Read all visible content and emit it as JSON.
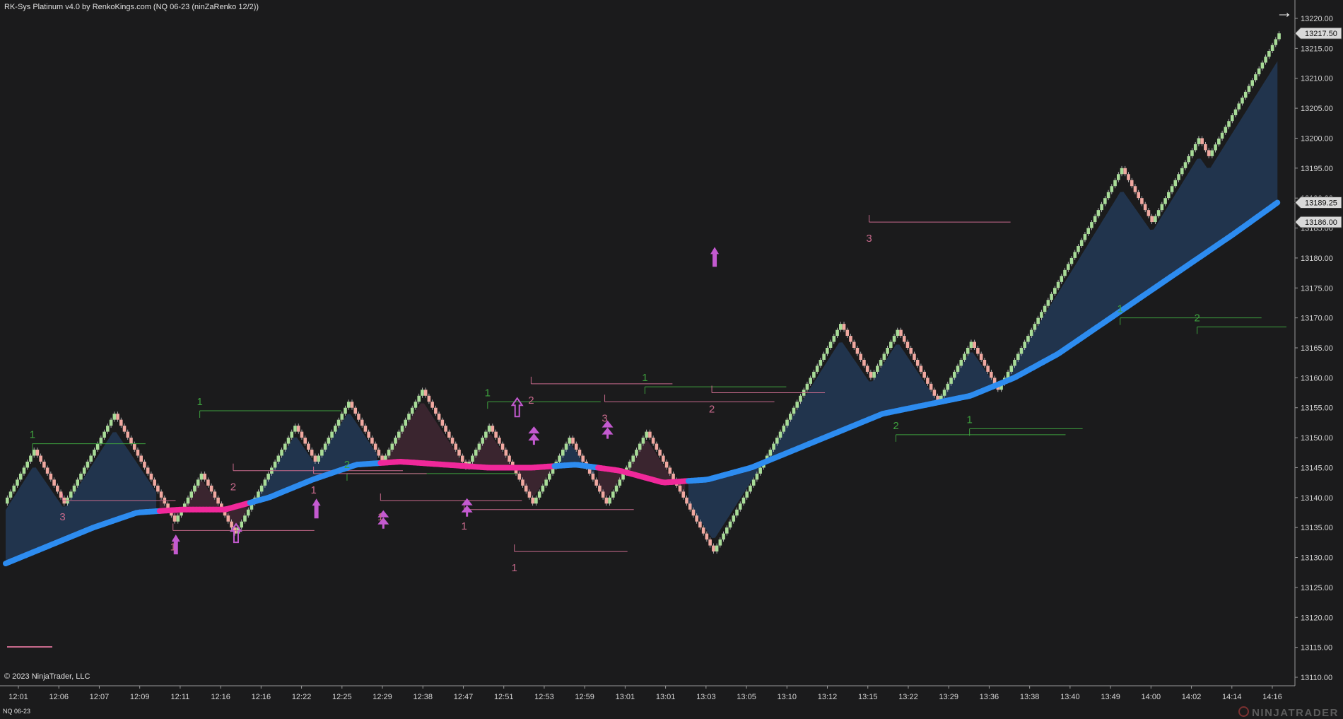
{
  "window": {
    "title": "RK-Sys Platinum v4.0 by RenkoKings.com (NQ 06-23 (ninZaRenko 12/2))",
    "copyright": "© 2023 NinjaTrader, LLC",
    "instrument_tab": "NQ 06-23",
    "brand": "NINJATRADER",
    "nav_icon": "arrow-right-icon"
  },
  "colors": {
    "background": "#1b1b1c",
    "up_brick": "#a8dc98",
    "down_brick": "#f0a8a0",
    "ma_up": "#2d8cf0",
    "ma_down": "#f0289a",
    "cloud_up": "#223650",
    "cloud_down": "#3c2630",
    "swing_high": "#3ea13e",
    "swing_low": "#c86a8c",
    "signal": "#c45ad0"
  },
  "chart_data": {
    "type": "renko",
    "title": "RK-Sys Platinum v4.0 by RenkoKings.com (NQ 06-23 (ninZaRenko 12/2))",
    "ylim": [
      13108,
      13222.5
    ],
    "y_ticks": [
      "13110.00",
      "13115.00",
      "13120.00",
      "13125.00",
      "13130.00",
      "13135.00",
      "13140.00",
      "13145.00",
      "13150.00",
      "13155.00",
      "13160.00",
      "13165.00",
      "13170.00",
      "13175.00",
      "13180.00",
      "13185.00",
      "13190.00",
      "13195.00",
      "13200.00",
      "13205.00",
      "13210.00",
      "13215.00",
      "13220.00"
    ],
    "x_ticks": [
      "12:01",
      "12:06",
      "12:07",
      "12:09",
      "12:11",
      "12:16",
      "12:16",
      "12:22",
      "12:25",
      "12:29",
      "12:38",
      "12:47",
      "12:51",
      "12:53",
      "12:59",
      "13:01",
      "13:01",
      "13:03",
      "13:05",
      "13:10",
      "13:12",
      "13:15",
      "13:22",
      "13:29",
      "13:36",
      "13:38",
      "13:40",
      "13:49",
      "14:00",
      "14:02",
      "14:14",
      "14:16"
    ],
    "price_tags": [
      {
        "value": 13217.5,
        "label": "13217.50"
      },
      {
        "value": 13189.25,
        "label": "13189.25"
      },
      {
        "value": 13186.0,
        "label": "13186.00"
      }
    ],
    "swings": [
      {
        "from": 13139,
        "to": 13148
      },
      {
        "from": 13148,
        "to": 13139
      },
      {
        "from": 13139,
        "to": 13154
      },
      {
        "from": 13154,
        "to": 13136
      },
      {
        "from": 13136,
        "to": 13144
      },
      {
        "from": 13144,
        "to": 13134
      },
      {
        "from": 13134,
        "to": 13152
      },
      {
        "from": 13152,
        "to": 13146
      },
      {
        "from": 13146,
        "to": 13156
      },
      {
        "from": 13156,
        "to": 13146
      },
      {
        "from": 13146,
        "to": 13158
      },
      {
        "from": 13158,
        "to": 13145
      },
      {
        "from": 13145,
        "to": 13152
      },
      {
        "from": 13152,
        "to": 13144
      },
      {
        "from": 13144,
        "to": 13139
      },
      {
        "from": 13139,
        "to": 13150
      },
      {
        "from": 13150,
        "to": 13139
      },
      {
        "from": 13139,
        "to": 13151
      },
      {
        "from": 13151,
        "to": 13131
      },
      {
        "from": 13131,
        "to": 13169
      },
      {
        "from": 13169,
        "to": 13160
      },
      {
        "from": 13160,
        "to": 13168
      },
      {
        "from": 13168,
        "to": 13156
      },
      {
        "from": 13156,
        "to": 13166
      },
      {
        "from": 13166,
        "to": 13158
      },
      {
        "from": 13158,
        "to": 13195
      },
      {
        "from": 13195,
        "to": 13186
      },
      {
        "from": 13186,
        "to": 13200
      },
      {
        "from": 13200,
        "to": 13197
      },
      {
        "from": 13197,
        "to": 13217.5
      }
    ],
    "moving_average": [
      {
        "value": 13129,
        "trend": "up"
      },
      {
        "value": 13132,
        "trend": "up"
      },
      {
        "value": 13135,
        "trend": "up"
      },
      {
        "value": 13137.5,
        "trend": "up"
      },
      {
        "value": 13138,
        "trend": "down"
      },
      {
        "value": 13138,
        "trend": "down"
      },
      {
        "value": 13140,
        "trend": "up"
      },
      {
        "value": 13143,
        "trend": "up"
      },
      {
        "value": 13145.5,
        "trend": "up"
      },
      {
        "value": 13146,
        "trend": "down"
      },
      {
        "value": 13145.5,
        "trend": "down"
      },
      {
        "value": 13145,
        "trend": "down"
      },
      {
        "value": 13145,
        "trend": "down"
      },
      {
        "value": 13145.5,
        "trend": "up"
      },
      {
        "value": 13144.5,
        "trend": "down"
      },
      {
        "value": 13142.5,
        "trend": "down"
      },
      {
        "value": 13143,
        "trend": "up"
      },
      {
        "value": 13145,
        "trend": "up"
      },
      {
        "value": 13148,
        "trend": "up"
      },
      {
        "value": 13151,
        "trend": "up"
      },
      {
        "value": 13154,
        "trend": "up"
      },
      {
        "value": 13155.5,
        "trend": "up"
      },
      {
        "value": 13157,
        "trend": "up"
      },
      {
        "value": 13160,
        "trend": "up"
      },
      {
        "value": 13164,
        "trend": "up"
      },
      {
        "value": 13169,
        "trend": "up"
      },
      {
        "value": 13174,
        "trend": "up"
      },
      {
        "value": 13179,
        "trend": "up"
      },
      {
        "value": 13184,
        "trend": "up"
      },
      {
        "value": 13189.25,
        "trend": "up"
      }
    ],
    "swing_high_lines": [
      {
        "price": 13149,
        "label": "1"
      },
      {
        "price": 13154.5,
        "label": "1"
      },
      {
        "price": 13144,
        "label": "2"
      },
      {
        "price": 13156,
        "label": "1"
      },
      {
        "price": 13158.5,
        "label": "1"
      },
      {
        "price": 13150.5,
        "label": "2"
      },
      {
        "price": 13151.5,
        "label": "1"
      },
      {
        "price": 13170,
        "label": "1"
      },
      {
        "price": 13168.5,
        "label": "2"
      }
    ],
    "swing_low_lines": [
      {
        "price": 13139.5,
        "label": "3"
      },
      {
        "price": 13134.5,
        "label": "1"
      },
      {
        "price": 13144.5,
        "label": "2"
      },
      {
        "price": 13144,
        "label": "1"
      },
      {
        "price": 13139.5,
        "label": "1"
      },
      {
        "price": 13138,
        "label": "1"
      },
      {
        "price": 13131,
        "label": "1"
      },
      {
        "price": 13159,
        "label": "2"
      },
      {
        "price": 13156,
        "label": "3"
      },
      {
        "price": 13157.5,
        "label": "2"
      },
      {
        "price": 13186,
        "label": "3"
      }
    ],
    "signals": [
      {
        "type": "solid-arrow",
        "price": 13131
      },
      {
        "type": "hollow-arrow",
        "price": 13133
      },
      {
        "type": "solid-arrow",
        "price": 13137
      },
      {
        "type": "double-arrow",
        "price": 13136
      },
      {
        "type": "double-arrow",
        "price": 13138
      },
      {
        "type": "hollow-arrow",
        "price": 13154
      },
      {
        "type": "double-arrow",
        "price": 13150
      },
      {
        "type": "double-arrow",
        "price": 13151
      },
      {
        "type": "solid-arrow",
        "price": 13179
      }
    ]
  }
}
